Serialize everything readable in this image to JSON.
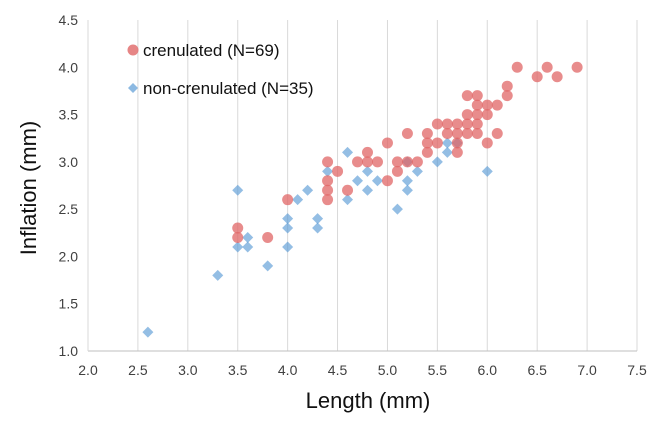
{
  "chart_data": {
    "type": "scatter",
    "xlabel": "Length (mm)",
    "ylabel": "Inflation (mm)",
    "xlim": [
      2.0,
      7.5
    ],
    "ylim": [
      1.0,
      4.5
    ],
    "x_ticks": [
      "2.0",
      "2.5",
      "3.0",
      "3.5",
      "4.0",
      "4.5",
      "5.0",
      "5.5",
      "6.0",
      "6.5",
      "7.0",
      "7.5"
    ],
    "y_ticks": [
      "1.0",
      "1.5",
      "2.0",
      "2.5",
      "3.0",
      "3.5",
      "4.0",
      "4.5"
    ],
    "grid": "vertical",
    "legend_position": "top-left",
    "series": [
      {
        "name": "crenulated (N=69)",
        "marker": "circle",
        "color": "#e06666",
        "points": [
          [
            3.5,
            2.3
          ],
          [
            3.5,
            2.2
          ],
          [
            3.8,
            2.2
          ],
          [
            4.0,
            2.6
          ],
          [
            4.4,
            3.0
          ],
          [
            4.4,
            2.8
          ],
          [
            4.4,
            2.7
          ],
          [
            4.4,
            2.6
          ],
          [
            4.5,
            2.9
          ],
          [
            4.6,
            2.7
          ],
          [
            4.7,
            3.0
          ],
          [
            4.8,
            3.1
          ],
          [
            4.8,
            3.0
          ],
          [
            4.9,
            3.0
          ],
          [
            5.0,
            3.2
          ],
          [
            5.0,
            2.8
          ],
          [
            5.1,
            3.0
          ],
          [
            5.1,
            2.9
          ],
          [
            5.2,
            3.3
          ],
          [
            5.2,
            3.0
          ],
          [
            5.3,
            3.0
          ],
          [
            5.4,
            3.3
          ],
          [
            5.4,
            3.2
          ],
          [
            5.4,
            3.1
          ],
          [
            5.5,
            3.4
          ],
          [
            5.5,
            3.2
          ],
          [
            5.6,
            3.4
          ],
          [
            5.6,
            3.3
          ],
          [
            5.7,
            3.4
          ],
          [
            5.7,
            3.3
          ],
          [
            5.7,
            3.2
          ],
          [
            5.7,
            3.1
          ],
          [
            5.8,
            3.7
          ],
          [
            5.8,
            3.5
          ],
          [
            5.8,
            3.4
          ],
          [
            5.8,
            3.3
          ],
          [
            5.9,
            3.7
          ],
          [
            5.9,
            3.6
          ],
          [
            5.9,
            3.5
          ],
          [
            5.9,
            3.4
          ],
          [
            5.9,
            3.3
          ],
          [
            6.0,
            3.6
          ],
          [
            6.0,
            3.5
          ],
          [
            6.0,
            3.2
          ],
          [
            6.1,
            3.6
          ],
          [
            6.1,
            3.3
          ],
          [
            6.2,
            3.8
          ],
          [
            6.2,
            3.7
          ],
          [
            6.3,
            4.0
          ],
          [
            6.5,
            3.9
          ],
          [
            6.6,
            4.0
          ],
          [
            6.7,
            3.9
          ],
          [
            6.9,
            4.0
          ]
        ]
      },
      {
        "name": "non-crenulated (N=35)",
        "marker": "diamond",
        "color": "#5b9bd5",
        "points": [
          [
            2.6,
            1.2
          ],
          [
            3.3,
            1.8
          ],
          [
            3.5,
            2.7
          ],
          [
            3.5,
            2.1
          ],
          [
            3.6,
            2.2
          ],
          [
            3.6,
            2.1
          ],
          [
            3.8,
            1.9
          ],
          [
            4.0,
            2.4
          ],
          [
            4.0,
            2.3
          ],
          [
            4.0,
            2.1
          ],
          [
            4.1,
            2.6
          ],
          [
            4.2,
            2.7
          ],
          [
            4.3,
            2.4
          ],
          [
            4.3,
            2.3
          ],
          [
            4.4,
            2.9
          ],
          [
            4.6,
            3.1
          ],
          [
            4.6,
            2.6
          ],
          [
            4.7,
            2.8
          ],
          [
            4.8,
            2.9
          ],
          [
            4.8,
            2.7
          ],
          [
            4.9,
            2.8
          ],
          [
            5.1,
            2.5
          ],
          [
            5.2,
            3.0
          ],
          [
            5.2,
            2.8
          ],
          [
            5.2,
            2.7
          ],
          [
            5.3,
            2.9
          ],
          [
            5.5,
            3.0
          ],
          [
            5.6,
            3.2
          ],
          [
            5.6,
            3.1
          ],
          [
            5.7,
            3.2
          ],
          [
            6.0,
            2.9
          ]
        ]
      }
    ]
  }
}
